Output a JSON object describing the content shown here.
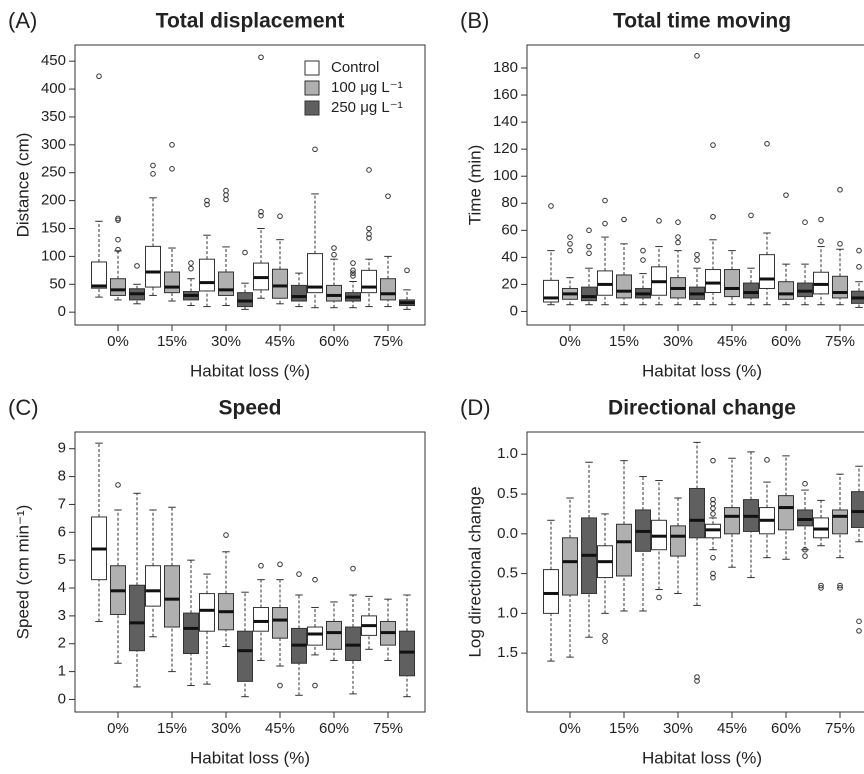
{
  "chart_data": [
    {
      "type": "box",
      "panel": "(A)",
      "title": "Total displacement",
      "ylabel": "Distance (cm)",
      "xlabel": "Habitat loss (%)",
      "categories": [
        "0%",
        "15%",
        "30%",
        "45%",
        "60%",
        "75%"
      ],
      "ylim": [
        -23,
        479
      ],
      "yticks": [
        0,
        50,
        100,
        150,
        200,
        250,
        300,
        350,
        400,
        450
      ],
      "legend": "top-right",
      "series": [
        {
          "name": "Control",
          "color": "#ffffff",
          "values": [
            [
              27,
              43,
              47,
              90,
              163
            ],
            [
              30,
              45,
              72,
              118,
              205
            ],
            [
              10,
              38,
              53,
              95,
              138
            ],
            [
              25,
              40,
              62,
              88,
              150
            ],
            [
              8,
              35,
              45,
              105,
              212
            ],
            [
              10,
              35,
              45,
              75,
              95
            ]
          ],
          "outliers": [
            [
              423
            ],
            [
              263,
              248
            ],
            [
              200,
              193
            ],
            [
              457,
              180,
              173
            ],
            [
              292
            ],
            [
              255,
              150,
              140,
              133
            ]
          ]
        },
        {
          "name": "100 μg L⁻¹",
          "color": "#b0b0b0",
          "values": [
            [
              22,
              30,
              40,
              60,
              110
            ],
            [
              20,
              35,
              45,
              72,
              115
            ],
            [
              12,
              30,
              40,
              72,
              117
            ],
            [
              15,
              25,
              47,
              77,
              130
            ],
            [
              8,
              20,
              30,
              48,
              95
            ],
            [
              10,
              22,
              33,
              60,
              100
            ]
          ],
          "outliers": [
            [
              168,
              165,
              130,
              112
            ],
            [
              300,
              257
            ],
            [
              218,
              210,
              202
            ],
            [
              172
            ],
            [
              115,
              103
            ],
            [
              208
            ]
          ]
        },
        {
          "name": "250 μg L⁻¹",
          "color": "#606060",
          "values": [
            [
              15,
              22,
              33,
              42,
              50
            ],
            [
              12,
              22,
              30,
              37,
              60
            ],
            [
              5,
              10,
              20,
              35,
              52
            ],
            [
              10,
              20,
              28,
              48,
              70
            ],
            [
              8,
              20,
              27,
              35,
              55
            ],
            [
              5,
              12,
              17,
              22,
              40
            ]
          ],
          "outliers": [
            [
              83
            ],
            [
              88,
              78
            ],
            [
              107
            ],
            [],
            [
              88,
              75,
              70,
              65
            ],
            [
              75
            ]
          ]
        }
      ]
    },
    {
      "type": "box",
      "panel": "(B)",
      "title": "Total time moving",
      "ylabel": "Time (min)",
      "xlabel": "Habitat loss (%)",
      "categories": [
        "0%",
        "15%",
        "30%",
        "45%",
        "60%",
        "75%"
      ],
      "ylim": [
        -10,
        197
      ],
      "yticks": [
        0,
        20,
        40,
        60,
        80,
        100,
        120,
        140,
        160,
        180
      ],
      "series": [
        {
          "color": "#ffffff",
          "values": [
            [
              5,
              7,
              10,
              23,
              45
            ],
            [
              5,
              12,
              20,
              30,
              55
            ],
            [
              5,
              12,
              22,
              33,
              48
            ],
            [
              5,
              14,
              21,
              31,
              53
            ],
            [
              5,
              17,
              24,
              42,
              58
            ],
            [
              5,
              13,
              20,
              29,
              48
            ]
          ],
          "outliers": [
            [
              78
            ],
            [
              82,
              65
            ],
            [
              67
            ],
            [
              123,
              70
            ],
            [
              124
            ],
            [
              68,
              52
            ]
          ]
        },
        {
          "color": "#b0b0b0",
          "values": [
            [
              5,
              9,
              13,
              17,
              25
            ],
            [
              5,
              10,
              15,
              27,
              50
            ],
            [
              5,
              10,
              17,
              25,
              45
            ],
            [
              5,
              11,
              17,
              31,
              45
            ],
            [
              5,
              9,
              13,
              22,
              35
            ],
            [
              5,
              10,
              14,
              26,
              46
            ]
          ],
          "outliers": [
            [
              55,
              50,
              45
            ],
            [
              68
            ],
            [
              66,
              55,
              51
            ],
            [],
            [
              86
            ],
            [
              90,
              50
            ]
          ]
        },
        {
          "color": "#606060",
          "values": [
            [
              5,
              8,
              11,
              18,
              32
            ],
            [
              5,
              10,
              13,
              17,
              28
            ],
            [
              5,
              9,
              13,
              18,
              32
            ],
            [
              5,
              10,
              14,
              21,
              32
            ],
            [
              5,
              11,
              15,
              21,
              35
            ],
            [
              3,
              6,
              10,
              15,
              22
            ]
          ],
          "outliers": [
            [
              60,
              48,
              43
            ],
            [
              45,
              38
            ],
            [
              189,
              42,
              38
            ],
            [
              71
            ],
            [
              66
            ],
            [
              45,
              33
            ]
          ]
        }
      ]
    },
    {
      "type": "box",
      "panel": "(C)",
      "title": "Speed",
      "ylabel": "Speed (cm min⁻¹)",
      "xlabel": "Habitat loss (%)",
      "categories": [
        "0%",
        "15%",
        "30%",
        "45%",
        "60%",
        "75%"
      ],
      "ylim": [
        -0.45,
        9.6
      ],
      "yticks": [
        0,
        1,
        2,
        3,
        4,
        5,
        6,
        7,
        8,
        9
      ],
      "series": [
        {
          "color": "#ffffff",
          "values": [
            [
              2.8,
              4.3,
              5.4,
              6.55,
              9.2
            ],
            [
              2.25,
              3.35,
              3.9,
              4.8,
              6.8
            ],
            [
              0.55,
              2.45,
              3.2,
              3.8,
              4.5
            ],
            [
              1.4,
              2.45,
              2.8,
              3.3,
              4.3
            ],
            [
              1.6,
              1.95,
              2.35,
              2.6,
              3.3
            ],
            [
              1.8,
              2.3,
              2.65,
              3.0,
              3.7
            ]
          ],
          "outliers": [
            [],
            [],
            [],
            [
              4.8
            ],
            [
              4.3,
              0.5
            ],
            []
          ]
        },
        {
          "color": "#b0b0b0",
          "values": [
            [
              1.3,
              3.05,
              3.9,
              4.8,
              6.8
            ],
            [
              1.0,
              2.6,
              3.6,
              4.8,
              6.9
            ],
            [
              1.9,
              2.5,
              3.15,
              3.8,
              5.3
            ],
            [
              1.2,
              2.2,
              2.85,
              3.3,
              4.3
            ],
            [
              1.4,
              1.8,
              2.4,
              2.8,
              3.5
            ],
            [
              1.4,
              1.95,
              2.4,
              2.8,
              3.6
            ]
          ],
          "outliers": [
            [
              7.7
            ],
            [],
            [
              5.9
            ],
            [
              4.85,
              0.5
            ],
            [],
            []
          ]
        },
        {
          "color": "#606060",
          "values": [
            [
              0.45,
              1.75,
              2.75,
              4.1,
              7.4
            ],
            [
              0.5,
              1.65,
              2.55,
              3.1,
              5.0
            ],
            [
              0.1,
              0.65,
              1.75,
              2.45,
              3.85
            ],
            [
              0.15,
              1.3,
              1.95,
              2.55,
              3.75
            ],
            [
              0.2,
              1.4,
              1.95,
              2.6,
              3.75
            ],
            [
              0.1,
              0.85,
              1.7,
              2.45,
              3.75
            ]
          ],
          "outliers": [
            [],
            [],
            [],
            [
              4.5
            ],
            [
              4.7
            ],
            []
          ]
        }
      ]
    },
    {
      "type": "box",
      "panel": "(D)",
      "title": "Directional change",
      "ylabel": "Log directional change",
      "xlabel": "Habitat loss (%)",
      "categories": [
        "0%",
        "15%",
        "30%",
        "45%",
        "60%",
        "75%"
      ],
      "ylim": [
        -2.24,
        1.28
      ],
      "yticks": [
        {
          "value": -1.5,
          "label": "1.5"
        },
        {
          "value": -1,
          "label": "1.0"
        },
        {
          "value": -0.5,
          "label": "0.5"
        },
        {
          "value": 0,
          "label": "0.0"
        },
        0.5,
        {
          "value": 1,
          "label": "1.0"
        }
      ],
      "series": [
        {
          "color": "#ffffff",
          "values": [
            [
              -1.6,
              -1.0,
              -0.75,
              -0.45,
              0.17
            ],
            [
              -1.0,
              -0.55,
              -0.35,
              -0.15,
              0.25
            ],
            [
              -0.7,
              -0.2,
              -0.03,
              0.17,
              0.67
            ],
            [
              -0.2,
              -0.05,
              0.05,
              0.12,
              0.2
            ],
            [
              -0.3,
              0.0,
              0.17,
              0.33,
              0.65
            ],
            [
              -0.15,
              -0.05,
              0.06,
              0.2,
              0.42
            ]
          ],
          "outliers": [
            [],
            [
              -1.28,
              -1.35
            ],
            [
              -0.8
            ],
            [
              0.92,
              0.43,
              0.38,
              0.32,
              0.25,
              -0.3,
              -0.5,
              -0.55
            ],
            [
              0.93
            ],
            [
              -0.65,
              -0.68
            ]
          ]
        },
        {
          "color": "#b0b0b0",
          "values": [
            [
              -1.55,
              -0.77,
              -0.35,
              -0.05,
              0.45
            ],
            [
              -0.97,
              -0.53,
              -0.1,
              0.12,
              0.92
            ],
            [
              -0.75,
              -0.28,
              -0.03,
              0.1,
              0.45
            ],
            [
              -0.42,
              0.0,
              0.22,
              0.33,
              0.95
            ],
            [
              -0.32,
              0.05,
              0.33,
              0.48,
              0.98
            ],
            [
              -0.3,
              0.0,
              0.22,
              0.3,
              0.75
            ]
          ],
          "outliers": [
            [],
            [],
            [],
            [],
            [],
            [
              -0.65,
              -0.68
            ]
          ]
        },
        {
          "color": "#606060",
          "values": [
            [
              -1.3,
              -0.75,
              -0.27,
              0.2,
              0.9
            ],
            [
              -0.97,
              -0.22,
              0.03,
              0.3,
              0.72
            ],
            [
              -0.9,
              -0.05,
              0.17,
              0.57,
              1.15
            ],
            [
              -0.55,
              0.03,
              0.22,
              0.43,
              1.03
            ],
            [
              -0.2,
              0.1,
              0.18,
              0.3,
              0.55
            ],
            [
              -0.1,
              0.08,
              0.28,
              0.53,
              0.85
            ]
          ],
          "outliers": [
            [],
            [],
            [
              -1.85,
              -1.8
            ],
            [],
            [
              0.63,
              -0.2,
              -0.28
            ],
            [
              -1.1,
              -1.22
            ]
          ]
        }
      ]
    }
  ]
}
